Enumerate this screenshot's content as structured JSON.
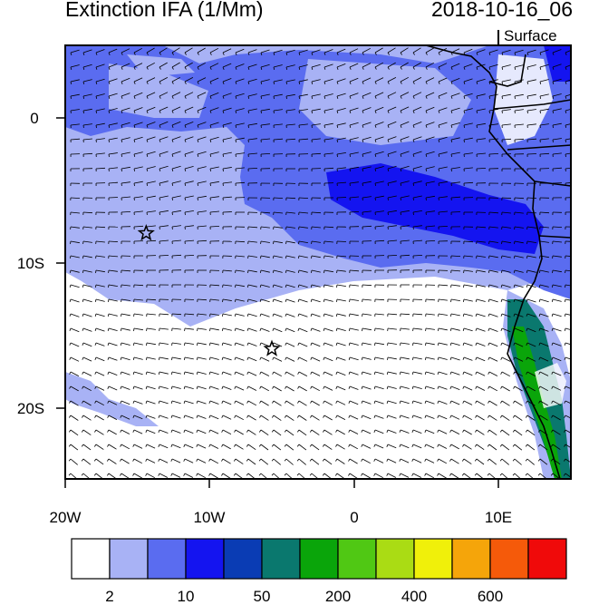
{
  "title": "Extinction IFA (1/Mm)",
  "datetime": "2018-10-16_06",
  "level": "Surface",
  "map": {
    "lon_range": [
      -20,
      15
    ],
    "lat_range": [
      -25,
      5
    ],
    "x_ticks": [
      "20W",
      "10W",
      "0",
      "10E"
    ],
    "y_ticks": [
      "0",
      "10S",
      "20S"
    ]
  },
  "markers": [
    {
      "name": "star-marker-1",
      "lon": -14.4,
      "lat": -8.0
    },
    {
      "name": "star-marker-2",
      "lon": -5.7,
      "lat": -16.0
    }
  ],
  "colorbar": {
    "colors": [
      "#ffffff",
      "#a8b2f5",
      "#5a6cf0",
      "#1414f0",
      "#0a3cb4",
      "#0a786e",
      "#0aa50a",
      "#50c814",
      "#aadc14",
      "#f0f00a",
      "#f5a50a",
      "#f55a0a",
      "#f00a0a"
    ],
    "labels": [
      "2",
      "10",
      "50",
      "200",
      "400",
      "600"
    ],
    "label_positions": [
      1,
      3,
      5,
      7,
      9,
      11
    ]
  }
}
